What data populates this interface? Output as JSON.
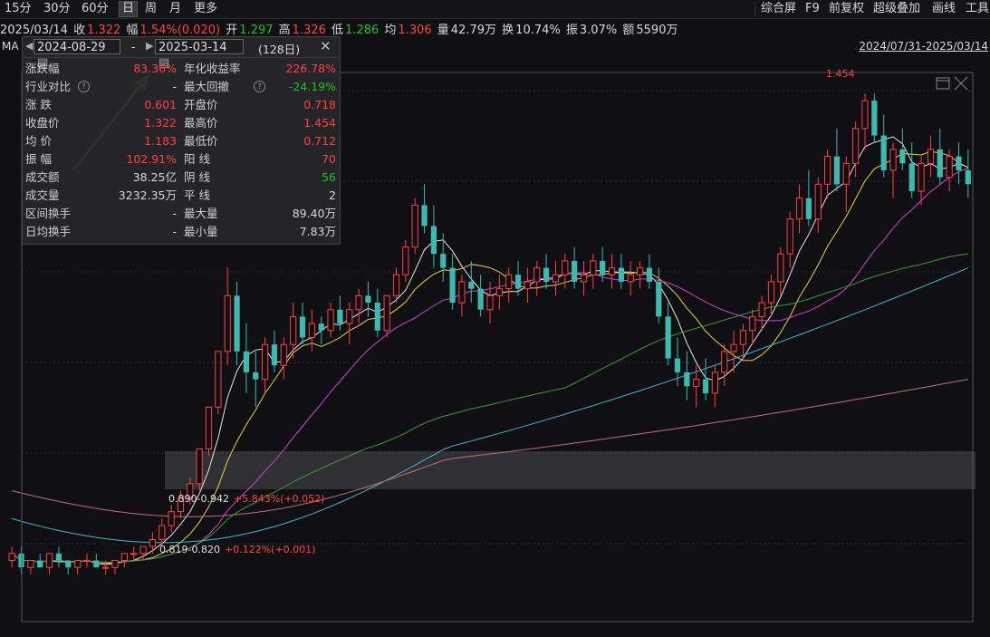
{
  "toolbar": {
    "periods": [
      "15分",
      "30分",
      "60分",
      "日",
      "周",
      "月",
      "更多"
    ],
    "active_index": 3,
    "right": [
      "综合屏",
      "F9",
      "前复权",
      "超级叠加",
      "画线",
      "工具"
    ]
  },
  "info": {
    "date": "2025/03/14",
    "close_label": "收",
    "close": "1.322",
    "change_label": "幅",
    "change": "1.54%(0.020)",
    "open_label": "开",
    "open": "1.297",
    "high_label": "高",
    "high": "1.326",
    "low_label": "低",
    "low": "1.286",
    "avg_label": "均",
    "avg": "1.306",
    "vol_label": "量",
    "vol": "42.79万",
    "turnover_label": "换",
    "turnover": "10.74%",
    "amp_label": "振",
    "amp": "3.07%",
    "amount_label": "额",
    "amount": "5590万"
  },
  "range_text": "2024/07/31-2025/03/14",
  "ma_label": "MA",
  "panel": {
    "start_date": "2024-08-29",
    "dash": "-",
    "end_date": "2025-03-14",
    "days": "(128日)",
    "rows": [
      {
        "l1": "涨跌幅",
        "v1": "83.36%",
        "l2": "年化收益率",
        "v2": "226.78%",
        "c1": "red",
        "c2": "red"
      },
      {
        "l1": "行业对比",
        "v1": "-",
        "l2": "最大回撤",
        "v2": "-24.19%",
        "c1": "white",
        "c2": "green"
      },
      {
        "l1": "涨  跌",
        "v1": "0.601",
        "l2": "开盘价",
        "v2": "0.718",
        "c1": "red",
        "c2": "red"
      },
      {
        "l1": "收盘价",
        "v1": "1.322",
        "l2": "最高价",
        "v2": "1.454",
        "c1": "red",
        "c2": "red"
      },
      {
        "l1": "均  价",
        "v1": "1.183",
        "l2": "最低价",
        "v2": "0.712",
        "c1": "red",
        "c2": "red"
      },
      {
        "l1": "振  幅",
        "v1": "102.91%",
        "l2": "阳  线",
        "v2": "70",
        "c1": "red",
        "c2": "red"
      },
      {
        "l1": "成交额",
        "v1": "38.25亿",
        "l2": "阴  线",
        "v2": "56",
        "c1": "white",
        "c2": "green"
      },
      {
        "l1": "成交量",
        "v1": "3232.35万",
        "l2": "平  线",
        "v2": "2",
        "c1": "white",
        "c2": "white"
      },
      {
        "l1": "区间换手",
        "v1": "-",
        "l2": "最大量",
        "v2": "89.40万",
        "c1": "white",
        "c2": "white"
      },
      {
        "l1": "日均换手",
        "v1": "-",
        "l2": "最小量",
        "v2": "7.83万",
        "c1": "white",
        "c2": "white"
      }
    ]
  },
  "annotations": {
    "peak": "1.454",
    "zone1_range": "0.890-0.942",
    "zone1_pct": "+5.843%(+0.052)",
    "zone2_range": "0.819-0.820",
    "zone2_pct": "+0.122%(+0.001)"
  },
  "colors": {
    "up": "#ff4040",
    "down": "#3fb8b0",
    "ma5": "#e8e8e8",
    "ma10": "#e8d040",
    "ma20": "#d040d0",
    "ma60": "#3a9a3a",
    "ma120": "#40b8d0",
    "ma250": "#c07070",
    "arrow": "#f0b020"
  },
  "chart_data": {
    "type": "candlestick",
    "y_range": [
      0.7,
      1.47
    ],
    "candles": [
      [
        0.78,
        0.8,
        0.77,
        0.79
      ],
      [
        0.79,
        0.8,
        0.76,
        0.77
      ],
      [
        0.77,
        0.78,
        0.76,
        0.78
      ],
      [
        0.78,
        0.79,
        0.77,
        0.77
      ],
      [
        0.77,
        0.79,
        0.76,
        0.79
      ],
      [
        0.79,
        0.8,
        0.77,
        0.78
      ],
      [
        0.78,
        0.78,
        0.76,
        0.77
      ],
      [
        0.77,
        0.78,
        0.76,
        0.78
      ],
      [
        0.78,
        0.79,
        0.77,
        0.78
      ],
      [
        0.78,
        0.79,
        0.77,
        0.77
      ],
      [
        0.77,
        0.78,
        0.76,
        0.77
      ],
      [
        0.77,
        0.78,
        0.76,
        0.78
      ],
      [
        0.78,
        0.79,
        0.77,
        0.79
      ],
      [
        0.79,
        0.8,
        0.78,
        0.79
      ],
      [
        0.79,
        0.8,
        0.78,
        0.8
      ],
      [
        0.8,
        0.82,
        0.79,
        0.81
      ],
      [
        0.81,
        0.84,
        0.8,
        0.83
      ],
      [
        0.83,
        0.86,
        0.82,
        0.85
      ],
      [
        0.85,
        0.88,
        0.84,
        0.87
      ],
      [
        0.87,
        0.9,
        0.86,
        0.89
      ],
      [
        0.89,
        0.94,
        0.88,
        0.94
      ],
      [
        0.94,
        1.0,
        0.93,
        1.0
      ],
      [
        1.0,
        1.08,
        0.99,
        1.08
      ],
      [
        1.08,
        1.2,
        1.06,
        1.16
      ],
      [
        1.16,
        1.18,
        1.06,
        1.08
      ],
      [
        1.08,
        1.12,
        1.02,
        1.05
      ],
      [
        1.05,
        1.08,
        1.0,
        1.04
      ],
      [
        1.04,
        1.1,
        1.02,
        1.09
      ],
      [
        1.09,
        1.11,
        1.05,
        1.06
      ],
      [
        1.06,
        1.1,
        1.04,
        1.09
      ],
      [
        1.09,
        1.15,
        1.07,
        1.13
      ],
      [
        1.13,
        1.15,
        1.09,
        1.1
      ],
      [
        1.1,
        1.14,
        1.08,
        1.12
      ],
      [
        1.12,
        1.13,
        1.09,
        1.11
      ],
      [
        1.11,
        1.15,
        1.1,
        1.14
      ],
      [
        1.14,
        1.16,
        1.11,
        1.12
      ],
      [
        1.12,
        1.15,
        1.09,
        1.14
      ],
      [
        1.14,
        1.17,
        1.12,
        1.16
      ],
      [
        1.16,
        1.18,
        1.13,
        1.15
      ],
      [
        1.15,
        1.17,
        1.1,
        1.11
      ],
      [
        1.11,
        1.16,
        1.1,
        1.16
      ],
      [
        1.16,
        1.2,
        1.15,
        1.19
      ],
      [
        1.19,
        1.24,
        1.18,
        1.23
      ],
      [
        1.23,
        1.3,
        1.22,
        1.29
      ],
      [
        1.29,
        1.32,
        1.25,
        1.26
      ],
      [
        1.26,
        1.29,
        1.2,
        1.22
      ],
      [
        1.22,
        1.25,
        1.18,
        1.2
      ],
      [
        1.2,
        1.22,
        1.14,
        1.15
      ],
      [
        1.15,
        1.19,
        1.13,
        1.18
      ],
      [
        1.18,
        1.21,
        1.15,
        1.17
      ],
      [
        1.17,
        1.19,
        1.13,
        1.14
      ],
      [
        1.14,
        1.18,
        1.12,
        1.16
      ],
      [
        1.16,
        1.19,
        1.14,
        1.17
      ],
      [
        1.17,
        1.2,
        1.15,
        1.19
      ],
      [
        1.19,
        1.21,
        1.16,
        1.17
      ],
      [
        1.17,
        1.2,
        1.15,
        1.18
      ],
      [
        1.18,
        1.21,
        1.16,
        1.2
      ],
      [
        1.2,
        1.22,
        1.17,
        1.18
      ],
      [
        1.18,
        1.21,
        1.16,
        1.19
      ],
      [
        1.19,
        1.22,
        1.17,
        1.21
      ],
      [
        1.21,
        1.23,
        1.17,
        1.18
      ],
      [
        1.18,
        1.21,
        1.16,
        1.19
      ],
      [
        1.19,
        1.22,
        1.17,
        1.21
      ],
      [
        1.21,
        1.23,
        1.18,
        1.19
      ],
      [
        1.19,
        1.22,
        1.17,
        1.2
      ],
      [
        1.2,
        1.22,
        1.17,
        1.18
      ],
      [
        1.18,
        1.21,
        1.16,
        1.19
      ],
      [
        1.19,
        1.21,
        1.17,
        1.2
      ],
      [
        1.2,
        1.22,
        1.17,
        1.18
      ],
      [
        1.18,
        1.2,
        1.12,
        1.13
      ],
      [
        1.13,
        1.15,
        1.06,
        1.07
      ],
      [
        1.07,
        1.1,
        1.03,
        1.05
      ],
      [
        1.05,
        1.08,
        1.01,
        1.03
      ],
      [
        1.03,
        1.06,
        1.0,
        1.04
      ],
      [
        1.04,
        1.07,
        1.01,
        1.02
      ],
      [
        1.02,
        1.06,
        1.0,
        1.05
      ],
      [
        1.05,
        1.09,
        1.03,
        1.08
      ],
      [
        1.08,
        1.11,
        1.05,
        1.09
      ],
      [
        1.09,
        1.12,
        1.07,
        1.11
      ],
      [
        1.11,
        1.14,
        1.09,
        1.13
      ],
      [
        1.13,
        1.16,
        1.11,
        1.15
      ],
      [
        1.15,
        1.19,
        1.13,
        1.18
      ],
      [
        1.18,
        1.23,
        1.16,
        1.22
      ],
      [
        1.22,
        1.28,
        1.2,
        1.27
      ],
      [
        1.27,
        1.32,
        1.25,
        1.3
      ],
      [
        1.3,
        1.34,
        1.26,
        1.27
      ],
      [
        1.27,
        1.33,
        1.25,
        1.32
      ],
      [
        1.32,
        1.37,
        1.3,
        1.36
      ],
      [
        1.36,
        1.4,
        1.31,
        1.32
      ],
      [
        1.32,
        1.36,
        1.28,
        1.35
      ],
      [
        1.35,
        1.41,
        1.33,
        1.4
      ],
      [
        1.4,
        1.45,
        1.37,
        1.44
      ],
      [
        1.44,
        1.45,
        1.38,
        1.39
      ],
      [
        1.39,
        1.42,
        1.33,
        1.34
      ],
      [
        1.34,
        1.38,
        1.3,
        1.37
      ],
      [
        1.37,
        1.4,
        1.34,
        1.35
      ],
      [
        1.35,
        1.38,
        1.3,
        1.31
      ],
      [
        1.31,
        1.36,
        1.29,
        1.35
      ],
      [
        1.35,
        1.39,
        1.33,
        1.37
      ],
      [
        1.37,
        1.4,
        1.32,
        1.33
      ],
      [
        1.33,
        1.37,
        1.31,
        1.36
      ],
      [
        1.36,
        1.38,
        1.32,
        1.34
      ],
      [
        1.34,
        1.37,
        1.3,
        1.32
      ]
    ]
  }
}
